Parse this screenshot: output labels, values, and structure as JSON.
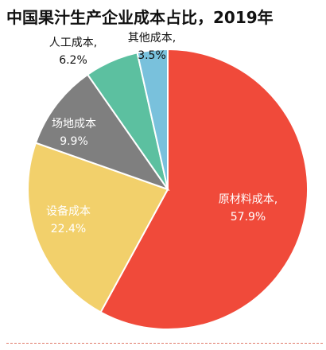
{
  "title": "中国果汁生产企业成本占比，2019年",
  "chart_data": {
    "type": "pie",
    "title": "中国果汁生产企业成本占比，2019年",
    "slices": [
      {
        "name": "原材料成本",
        "value": 57.9,
        "label": "57.9%",
        "color": "#f04a3a"
      },
      {
        "name": "设备成本",
        "value": 22.4,
        "label": "22.4%",
        "color": "#f2d06b"
      },
      {
        "name": "场地成本",
        "value": 9.9,
        "label": "9.9%",
        "color": "#7f7f7f"
      },
      {
        "name": "人工成本",
        "value": 6.2,
        "label": "6.2%",
        "color": "#5cc0a0"
      },
      {
        "name": "其他成本",
        "value": 3.5,
        "label": "3.5%",
        "color": "#79c1dc"
      }
    ],
    "label_separator": ",",
    "start_angle": "12 o'clock",
    "direction": "clockwise",
    "legend": "none"
  }
}
